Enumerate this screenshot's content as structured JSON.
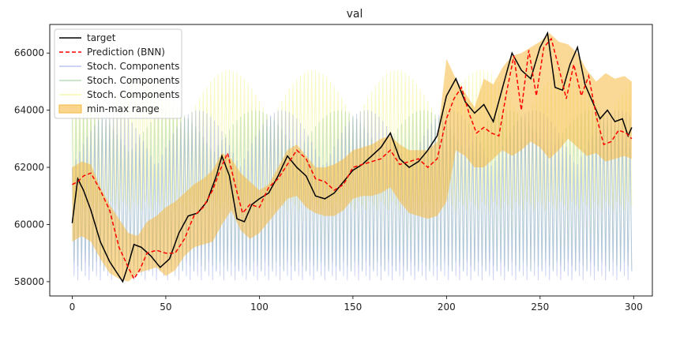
{
  "chart_data": {
    "type": "line",
    "title": "val",
    "xlabel": "",
    "ylabel": "",
    "xlim": [
      -12,
      310
    ],
    "ylim": [
      57500,
      67000
    ],
    "x_ticks": [
      0,
      50,
      100,
      150,
      200,
      250,
      300
    ],
    "y_ticks": [
      58000,
      60000,
      62000,
      64000,
      66000
    ],
    "x_tick_labels": [
      "0",
      "50",
      "100",
      "150",
      "200",
      "250",
      "300"
    ],
    "y_tick_labels": [
      "58000",
      "60000",
      "62000",
      "64000",
      "66000"
    ],
    "grid": false,
    "legend_position": "top-left",
    "n_points": 300,
    "target": {
      "name": "target",
      "color": "#000000",
      "x": [
        0,
        3,
        6,
        10,
        15,
        20,
        24,
        27,
        30,
        33,
        37,
        42,
        47,
        52,
        57,
        62,
        67,
        72,
        77,
        80,
        84,
        88,
        92,
        96,
        100,
        105,
        110,
        115,
        120,
        125,
        130,
        135,
        140,
        145,
        150,
        155,
        160,
        165,
        170,
        175,
        180,
        185,
        190,
        195,
        200,
        205,
        210,
        215,
        220,
        225,
        230,
        235,
        240,
        245,
        250,
        254,
        258,
        262,
        266,
        270,
        274,
        278,
        282,
        286,
        290,
        294,
        297,
        299
      ],
      "values": [
        60050,
        61600,
        61200,
        60500,
        59400,
        58700,
        58300,
        58000,
        58600,
        59300,
        59200,
        58900,
        58500,
        58800,
        59700,
        60300,
        60400,
        60800,
        61700,
        62400,
        61700,
        60200,
        60100,
        60700,
        60900,
        61100,
        61700,
        62400,
        62000,
        61700,
        61000,
        60900,
        61100,
        61500,
        61900,
        62100,
        62400,
        62700,
        63200,
        62300,
        62000,
        62200,
        62600,
        63100,
        64500,
        65100,
        64300,
        63900,
        64200,
        63600,
        64800,
        66000,
        65400,
        65100,
        66200,
        66700,
        64800,
        64700,
        65600,
        66200,
        64900,
        64300,
        63700,
        64000,
        63600,
        63700,
        63100,
        63400
      ]
    },
    "prediction": {
      "name": "Prediction (BNN)",
      "color": "#ff0000",
      "x": [
        0,
        3,
        6,
        10,
        15,
        20,
        25,
        30,
        33,
        36,
        40,
        45,
        50,
        55,
        60,
        65,
        70,
        75,
        79,
        83,
        87,
        91,
        95,
        100,
        105,
        110,
        115,
        120,
        125,
        130,
        135,
        140,
        145,
        150,
        155,
        160,
        165,
        170,
        175,
        180,
        185,
        190,
        195,
        200,
        204,
        208,
        212,
        216,
        220,
        224,
        228,
        232,
        236,
        240,
        244,
        248,
        252,
        256,
        260,
        264,
        268,
        272,
        276,
        280,
        284,
        288,
        292,
        296,
        299
      ],
      "values": [
        61400,
        61500,
        61700,
        61800,
        61200,
        60500,
        59200,
        58500,
        58100,
        58400,
        59000,
        59100,
        59000,
        59000,
        59500,
        60300,
        60600,
        61200,
        61900,
        62500,
        61400,
        60400,
        60700,
        60600,
        61300,
        61600,
        62100,
        62600,
        62300,
        61600,
        61500,
        61200,
        61400,
        62000,
        62100,
        62200,
        62300,
        62600,
        62100,
        62200,
        62300,
        62000,
        62300,
        63700,
        64400,
        64800,
        63900,
        63200,
        63400,
        63200,
        63100,
        64600,
        65900,
        64000,
        66100,
        64500,
        66200,
        66500,
        65500,
        64400,
        65600,
        64500,
        65200,
        63800,
        62800,
        62900,
        63300,
        63200,
        63000
      ]
    },
    "minmax": {
      "name": "min-max range",
      "color": "#f5b942",
      "x": [
        0,
        5,
        10,
        15,
        20,
        25,
        30,
        35,
        40,
        45,
        50,
        55,
        60,
        65,
        70,
        75,
        80,
        85,
        90,
        95,
        100,
        105,
        110,
        115,
        120,
        125,
        130,
        135,
        140,
        145,
        150,
        155,
        160,
        165,
        170,
        175,
        180,
        185,
        190,
        195,
        200,
        205,
        210,
        215,
        220,
        225,
        230,
        235,
        240,
        245,
        250,
        255,
        260,
        265,
        270,
        275,
        280,
        285,
        290,
        295,
        299
      ],
      "lower": [
        59400,
        59600,
        59400,
        58800,
        58300,
        58100,
        58000,
        58300,
        58400,
        58500,
        58200,
        58400,
        58900,
        59200,
        59300,
        59400,
        60000,
        60500,
        59800,
        59500,
        59700,
        60100,
        60500,
        60900,
        61000,
        60600,
        60400,
        60300,
        60300,
        60500,
        60900,
        61000,
        61000,
        61100,
        61300,
        60800,
        60400,
        60300,
        60200,
        60300,
        60800,
        62600,
        62400,
        62000,
        62000,
        62300,
        62600,
        62400,
        62600,
        62900,
        62700,
        62300,
        62600,
        63000,
        62700,
        62400,
        62500,
        62200,
        62300,
        62400,
        62300
      ],
      "upper": [
        62000,
        62200,
        62100,
        61300,
        60700,
        60200,
        59700,
        59600,
        60100,
        60300,
        60600,
        60800,
        61100,
        61400,
        61600,
        61900,
        62500,
        62300,
        61800,
        61500,
        61200,
        61400,
        62000,
        62600,
        62800,
        62400,
        62000,
        62000,
        62100,
        62300,
        62600,
        62700,
        62800,
        63000,
        63100,
        62800,
        62600,
        62600,
        62600,
        62900,
        65800,
        65100,
        64600,
        64100,
        65100,
        64900,
        65500,
        65900,
        66000,
        66200,
        66400,
        66700,
        66400,
        66300,
        66000,
        65400,
        65000,
        65300,
        65100,
        65200,
        65000
      ]
    },
    "stoch_components": [
      {
        "name": "Stoch. Components",
        "color": "#8f9ee6",
        "hi_base": 62000,
        "hi_bump": 2000,
        "lo": 58050
      },
      {
        "name": "Stoch. Components",
        "color": "#8fc98f",
        "hi_base": 62500,
        "hi_bump": 1500,
        "lo": 58400
      },
      {
        "name": "Stoch. Components",
        "color": "#f2f27a",
        "hi_base": 63600,
        "hi_bump": 1800,
        "lo": 60500
      }
    ]
  }
}
